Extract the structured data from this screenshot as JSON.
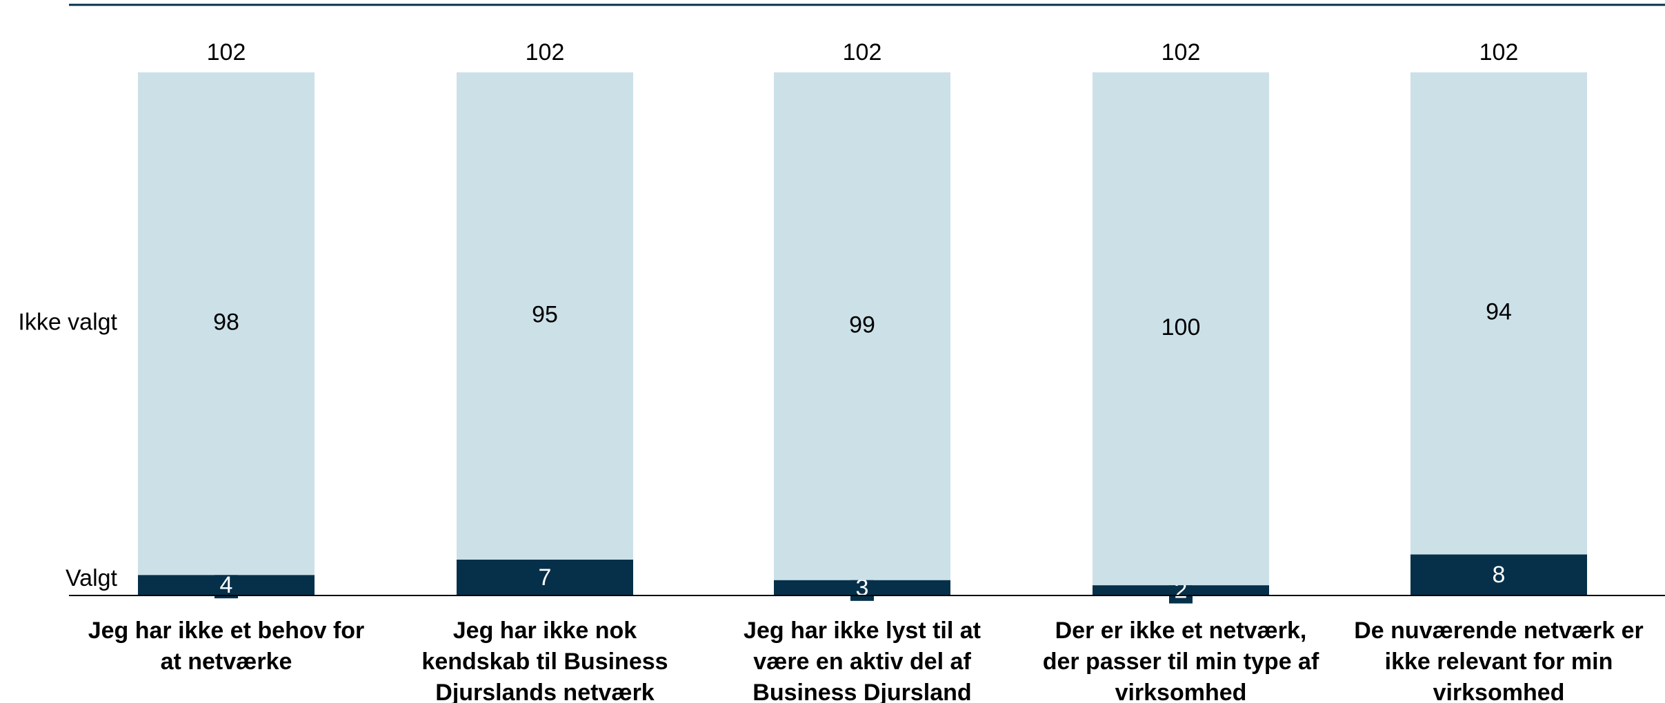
{
  "chart_data": {
    "type": "stacked_bar",
    "categories": [
      "Jeg har ikke et behov for at netværke",
      "Jeg har ikke nok kendskab til Business Djurslands netværk",
      "Jeg har ikke lyst til at være en aktiv del af Business Djursland",
      "Der er ikke et netværk, der passer til min type af virksomhed",
      "De nuværende netværk er ikke relevant for min virksomhed"
    ],
    "series": [
      {
        "name": "Valgt",
        "color": "#06304a",
        "values": [
          4,
          7,
          3,
          2,
          8
        ]
      },
      {
        "name": "Ikke valgt",
        "color": "#cce0e8",
        "values": [
          98,
          95,
          99,
          100,
          94
        ]
      }
    ],
    "totals": [
      102,
      102,
      102,
      102,
      102
    ],
    "ylim": [
      0,
      102
    ]
  }
}
